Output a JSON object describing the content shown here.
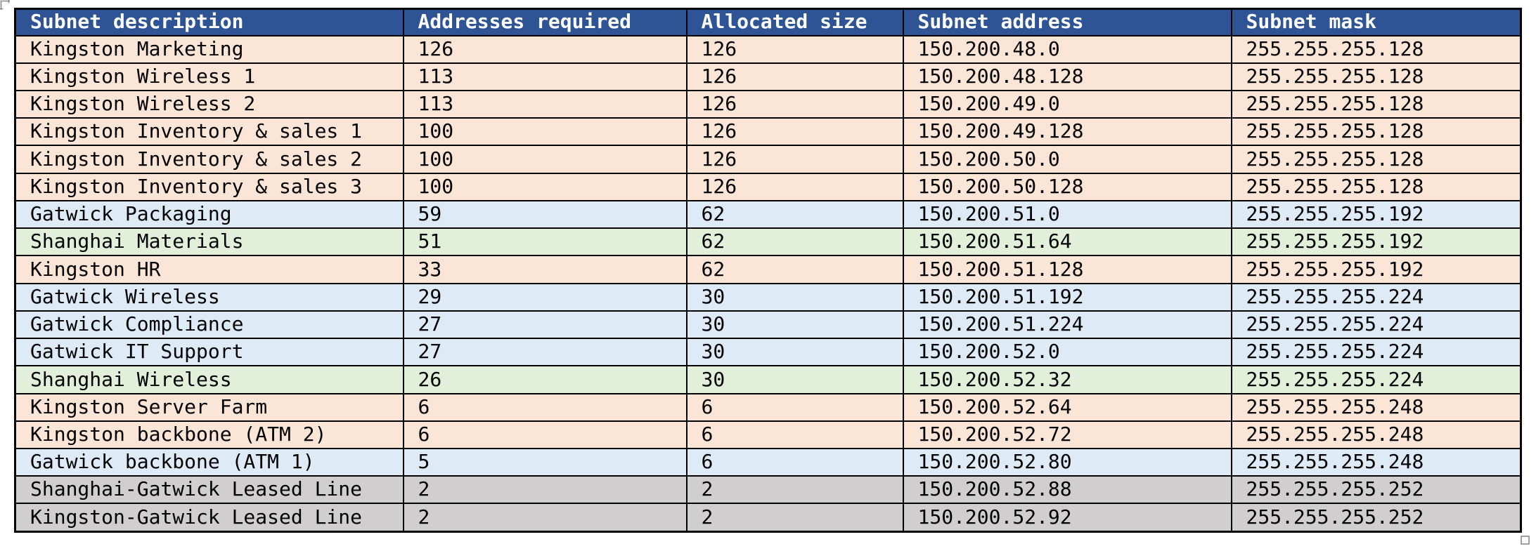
{
  "colors": {
    "header_bg": "#2F5496",
    "header_text": "#FFFFFF",
    "border": "#000000",
    "kingston_row": "#FBE5D6",
    "gatwick_row": "#DEEAF6",
    "shanghai_row": "#E2EFD9",
    "leased_row": "#D0CECE",
    "handle": "#A0A0A0",
    "corner_mark": "#8C8C8C"
  },
  "icons": {
    "corner_mark": "page-corner-crop-mark",
    "resize_handle": "table-resize-handle"
  },
  "table": {
    "columns": [
      "Subnet description",
      "Addresses required",
      "Allocated size",
      "Subnet address",
      "Subnet mask"
    ],
    "rows": [
      {
        "description": "Kingston Marketing",
        "required": "126",
        "allocated": "126",
        "address": "150.200.48.0",
        "mask": "255.255.255.128",
        "group": "kingston"
      },
      {
        "description": "Kingston Wireless 1",
        "required": "113",
        "allocated": "126",
        "address": "150.200.48.128",
        "mask": "255.255.255.128",
        "group": "kingston"
      },
      {
        "description": "Kingston Wireless 2",
        "required": "113",
        "allocated": "126",
        "address": "150.200.49.0",
        "mask": "255.255.255.128",
        "group": "kingston"
      },
      {
        "description": "Kingston Inventory & sales 1",
        "required": "100",
        "allocated": "126",
        "address": "150.200.49.128",
        "mask": "255.255.255.128",
        "group": "kingston"
      },
      {
        "description": "Kingston Inventory & sales 2",
        "required": "100",
        "allocated": "126",
        "address": "150.200.50.0",
        "mask": "255.255.255.128",
        "group": "kingston"
      },
      {
        "description": "Kingston Inventory & sales 3",
        "required": "100",
        "allocated": "126",
        "address": "150.200.50.128",
        "mask": "255.255.255.128",
        "group": "kingston"
      },
      {
        "description": "Gatwick Packaging",
        "required": "59",
        "allocated": "62",
        "address": "150.200.51.0",
        "mask": "255.255.255.192",
        "group": "gatwick"
      },
      {
        "description": "Shanghai Materials",
        "required": "51",
        "allocated": "62",
        "address": "150.200.51.64",
        "mask": "255.255.255.192",
        "group": "shanghai"
      },
      {
        "description": "Kingston HR",
        "required": "33",
        "allocated": "62",
        "address": "150.200.51.128",
        "mask": "255.255.255.192",
        "group": "kingston"
      },
      {
        "description": "Gatwick Wireless",
        "required": "29",
        "allocated": "30",
        "address": "150.200.51.192",
        "mask": "255.255.255.224",
        "group": "gatwick"
      },
      {
        "description": "Gatwick Compliance",
        "required": "27",
        "allocated": "30",
        "address": "150.200.51.224",
        "mask": "255.255.255.224",
        "group": "gatwick"
      },
      {
        "description": "Gatwick IT Support",
        "required": "27",
        "allocated": "30",
        "address": "150.200.52.0",
        "mask": "255.255.255.224",
        "group": "gatwick"
      },
      {
        "description": "Shanghai Wireless",
        "required": "26",
        "allocated": "30",
        "address": "150.200.52.32",
        "mask": "255.255.255.224",
        "group": "shanghai"
      },
      {
        "description": "Kingston Server Farm",
        "required": "6",
        "allocated": "6",
        "address": "150.200.52.64",
        "mask": "255.255.255.248",
        "group": "kingston"
      },
      {
        "description": "Kingston backbone (ATM 2)",
        "required": "6",
        "allocated": "6",
        "address": "150.200.52.72",
        "mask": "255.255.255.248",
        "group": "kingston"
      },
      {
        "description": "Gatwick backbone (ATM 1)",
        "required": "5",
        "allocated": "6",
        "address": "150.200.52.80",
        "mask": "255.255.255.248",
        "group": "gatwick"
      },
      {
        "description": "Shanghai-Gatwick Leased Line",
        "required": "2",
        "allocated": "2",
        "address": "150.200.52.88",
        "mask": "255.255.255.252",
        "group": "leased"
      },
      {
        "description": "Kingston-Gatwick Leased Line",
        "required": "2",
        "allocated": "2",
        "address": "150.200.52.92",
        "mask": "255.255.255.252",
        "group": "leased"
      }
    ]
  }
}
